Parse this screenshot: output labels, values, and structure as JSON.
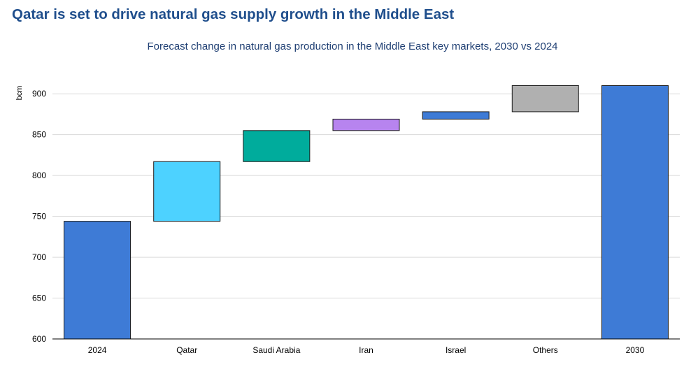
{
  "page": {
    "title": "Qatar is set to drive natural gas supply growth in the Middle East"
  },
  "chart_data": {
    "type": "bar",
    "variant": "waterfall",
    "title": "Forecast change in natural gas production in the Middle East key markets, 2030 vs 2024",
    "xlabel": "",
    "ylabel": "bcm",
    "ylim": [
      600,
      910
    ],
    "yticks": [
      600,
      650,
      700,
      750,
      800,
      850,
      900
    ],
    "grid": true,
    "categories": [
      "2024",
      "Qatar",
      "Saudi Arabia",
      "Iran",
      "Israel",
      "Others",
      "2030"
    ],
    "bars": [
      {
        "label": "2024",
        "kind": "total",
        "start": 600,
        "end": 744,
        "color": "#3e7bd6"
      },
      {
        "label": "Qatar",
        "kind": "change",
        "start": 744,
        "end": 817,
        "color": "#4dd2ff"
      },
      {
        "label": "Saudi Arabia",
        "kind": "change",
        "start": 817,
        "end": 855,
        "color": "#00ac9c"
      },
      {
        "label": "Iran",
        "kind": "change",
        "start": 855,
        "end": 869,
        "color": "#b784ef"
      },
      {
        "label": "Israel",
        "kind": "change",
        "start": 869,
        "end": 878,
        "color": "#3e7bd6"
      },
      {
        "label": "Others",
        "kind": "change",
        "start": 878,
        "end": 910,
        "color": "#b0b0b0"
      },
      {
        "label": "2030",
        "kind": "total",
        "start": 600,
        "end": 910,
        "color": "#3e7bd6"
      }
    ]
  }
}
